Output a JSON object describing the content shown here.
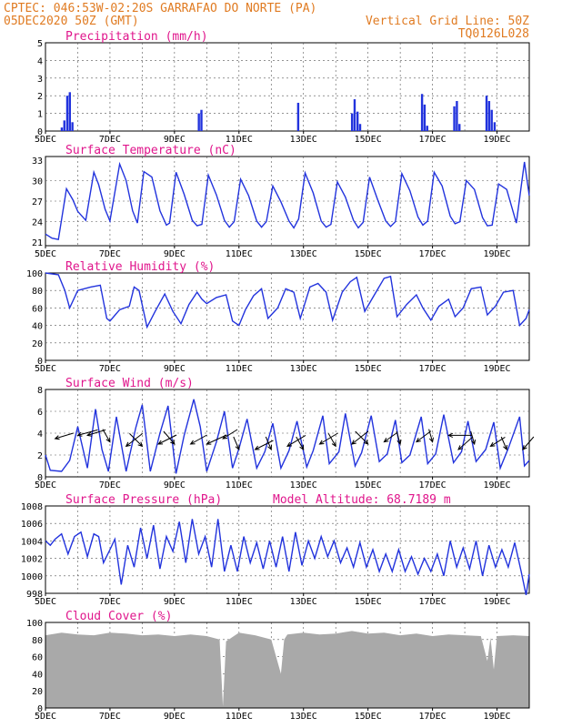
{
  "header": {
    "line1_left": "CPTEC:   046:53W-02:20S  GARRAFAO DO NORTE (PA)",
    "line2_left": "05DEC2020 50Z (GMT)",
    "line2_right": "Vertical Grid Line: 50Z",
    "line3_right": "TQ0126L028"
  },
  "colors": {
    "header": "#e07b22",
    "title": "#e0168c",
    "line": "#2233dd",
    "cloud": "#a9a9a9",
    "grid": "#555555"
  },
  "chart_data": [
    {
      "type": "bar",
      "title": "Precipitation (mm/h)",
      "x_tick_labels": [
        "5DEC",
        "7DEC",
        "9DEC",
        "11DEC",
        "13DEC",
        "15DEC",
        "17DEC",
        "19DEC"
      ],
      "day_range": [
        5,
        20
      ],
      "ylim": [
        0,
        5
      ],
      "y_ticks": [
        0,
        1,
        2,
        3,
        4,
        5
      ],
      "grid": true,
      "x": [
        5.5,
        5.58,
        5.67,
        5.75,
        5.83,
        9.75,
        9.83,
        12.83,
        14.5,
        14.58,
        14.67,
        14.75,
        16.67,
        16.75,
        16.83,
        17.67,
        17.75,
        17.83,
        18.67,
        18.75,
        18.83,
        18.92
      ],
      "values": [
        0.2,
        0.6,
        2.0,
        2.2,
        0.5,
        1.0,
        1.2,
        1.6,
        1.0,
        1.8,
        1.1,
        0.4,
        2.1,
        1.5,
        0.3,
        1.4,
        1.7,
        0.4,
        2.0,
        1.7,
        1.2,
        0.5
      ]
    },
    {
      "type": "line",
      "title": "Surface Temperature (nC)",
      "x_tick_labels": [
        "5DEC",
        "7DEC",
        "9DEC",
        "11DEC",
        "13DEC",
        "15DEC",
        "17DEC",
        "19DEC"
      ],
      "day_range": [
        5,
        20
      ],
      "ylim": [
        20.5,
        33.5
      ],
      "y_ticks": [
        21,
        24,
        27,
        30,
        33
      ],
      "grid": true,
      "x": [
        5.0,
        5.2,
        5.4,
        5.65,
        5.85,
        6.0,
        6.25,
        6.5,
        6.65,
        6.85,
        7.0,
        7.3,
        7.5,
        7.7,
        7.85,
        8.05,
        8.3,
        8.55,
        8.75,
        8.85,
        9.05,
        9.3,
        9.55,
        9.7,
        9.85,
        10.05,
        10.3,
        10.55,
        10.7,
        10.85,
        11.05,
        11.3,
        11.55,
        11.7,
        11.85,
        12.05,
        12.3,
        12.55,
        12.7,
        12.85,
        13.05,
        13.3,
        13.55,
        13.7,
        13.85,
        14.05,
        14.3,
        14.55,
        14.7,
        14.85,
        15.05,
        15.3,
        15.55,
        15.7,
        15.85,
        16.05,
        16.3,
        16.55,
        16.7,
        16.85,
        17.05,
        17.3,
        17.55,
        17.7,
        17.85,
        18.05,
        18.3,
        18.55,
        18.7,
        18.85,
        19.05,
        19.3,
        19.6,
        19.85,
        20.0
      ],
      "values": [
        22.2,
        21.6,
        21.4,
        28.8,
        27.2,
        25.5,
        24.2,
        31.2,
        29.4,
        25.8,
        24.1,
        32.4,
        30.0,
        25.6,
        23.8,
        31.3,
        30.5,
        25.6,
        23.5,
        23.8,
        31.2,
        28.0,
        24.2,
        23.4,
        23.6,
        30.8,
        27.9,
        24.2,
        23.2,
        24.0,
        30.2,
        27.8,
        24.1,
        23.2,
        24.0,
        29.2,
        26.9,
        24.1,
        23.1,
        24.4,
        31.1,
        28.2,
        24.1,
        23.2,
        23.6,
        29.8,
        27.6,
        24.2,
        23.1,
        23.9,
        30.5,
        27.2,
        24.1,
        23.3,
        24.0,
        31.0,
        28.5,
        24.7,
        23.5,
        24.1,
        31.2,
        29.2,
        24.8,
        23.7,
        24.0,
        30.0,
        28.7,
        24.6,
        23.4,
        23.5,
        29.5,
        28.7,
        23.8,
        32.7,
        27.8
      ]
    },
    {
      "type": "line",
      "title": "Relative Humidity (%)",
      "x_tick_labels": [
        "5DEC",
        "7DEC",
        "9DEC",
        "11DEC",
        "13DEC",
        "15DEC",
        "17DEC",
        "19DEC"
      ],
      "day_range": [
        5,
        20
      ],
      "ylim": [
        0,
        100
      ],
      "y_ticks": [
        0,
        20,
        40,
        60,
        80,
        100
      ],
      "grid": true,
      "x": [
        5.0,
        5.4,
        5.6,
        5.75,
        6.0,
        6.4,
        6.7,
        6.9,
        7.0,
        7.3,
        7.6,
        7.75,
        7.9,
        8.15,
        8.4,
        8.7,
        8.95,
        9.2,
        9.45,
        9.7,
        9.85,
        10.0,
        10.3,
        10.6,
        10.8,
        11.0,
        11.2,
        11.45,
        11.7,
        11.9,
        12.2,
        12.45,
        12.7,
        12.9,
        13.2,
        13.45,
        13.7,
        13.9,
        14.2,
        14.45,
        14.65,
        14.9,
        15.15,
        15.5,
        15.7,
        15.9,
        16.2,
        16.5,
        16.7,
        16.95,
        17.2,
        17.5,
        17.7,
        17.95,
        18.2,
        18.5,
        18.7,
        18.95,
        19.2,
        19.5,
        19.7,
        19.9,
        20.0
      ],
      "values": [
        100,
        98,
        80,
        60,
        80,
        84,
        86,
        48,
        45,
        58,
        62,
        84,
        80,
        38,
        56,
        76,
        56,
        42,
        64,
        78,
        70,
        65,
        72,
        75,
        45,
        40,
        58,
        74,
        82,
        48,
        60,
        82,
        78,
        48,
        84,
        88,
        78,
        46,
        78,
        90,
        95,
        56,
        72,
        94,
        96,
        50,
        64,
        75,
        60,
        46,
        62,
        70,
        50,
        60,
        82,
        84,
        52,
        62,
        78,
        80,
        40,
        48,
        58
      ]
    },
    {
      "type": "line",
      "title": "Surface Wind (m/s)",
      "x_tick_labels": [
        "5DEC",
        "7DEC",
        "9DEC",
        "11DEC",
        "13DEC",
        "15DEC",
        "17DEC",
        "19DEC"
      ],
      "day_range": [
        5,
        20
      ],
      "ylim": [
        0,
        8
      ],
      "y_ticks": [
        0,
        2,
        4,
        6,
        8
      ],
      "grid": true,
      "x": [
        5.0,
        5.15,
        5.5,
        5.75,
        6.0,
        6.3,
        6.55,
        6.75,
        6.95,
        7.2,
        7.5,
        7.8,
        8.0,
        8.25,
        8.55,
        8.8,
        9.05,
        9.3,
        9.6,
        9.8,
        10.0,
        10.3,
        10.55,
        10.8,
        11.0,
        11.25,
        11.55,
        11.8,
        12.05,
        12.3,
        12.55,
        12.8,
        13.1,
        13.3,
        13.6,
        13.8,
        14.1,
        14.3,
        14.6,
        14.8,
        15.1,
        15.35,
        15.6,
        15.85,
        16.05,
        16.3,
        16.65,
        16.85,
        17.1,
        17.35,
        17.65,
        17.9,
        18.1,
        18.35,
        18.65,
        18.9,
        19.1,
        19.35,
        19.7,
        19.85,
        20.0
      ],
      "values": [
        2.0,
        0.6,
        0.5,
        1.5,
        4.6,
        0.8,
        6.2,
        2.5,
        0.5,
        5.5,
        0.5,
        4.5,
        6.6,
        0.5,
        4.0,
        6.5,
        0.3,
        3.8,
        7.1,
        4.6,
        0.5,
        3.2,
        6.0,
        0.8,
        2.6,
        5.3,
        0.8,
        2.3,
        4.9,
        0.8,
        2.4,
        5.1,
        0.9,
        2.4,
        5.6,
        1.2,
        2.3,
        5.8,
        1.0,
        2.2,
        5.6,
        1.4,
        2.1,
        5.2,
        1.3,
        2.0,
        5.5,
        1.2,
        2.1,
        5.7,
        1.3,
        2.3,
        5.1,
        1.4,
        2.5,
        5.0,
        0.8,
        2.6,
        5.5,
        1.0,
        1.5
      ],
      "arrows": [
        {
          "day": 5.3,
          "speed": 3.5,
          "dx": 20,
          "dy": -6
        },
        {
          "day": 6.0,
          "speed": 3.8,
          "dx": 22,
          "dy": -6
        },
        {
          "day": 6.3,
          "speed": 3.8,
          "dx": 20,
          "dy": -6
        },
        {
          "day": 7.0,
          "speed": 3.2,
          "dx": -8,
          "dy": -14
        },
        {
          "day": 7.5,
          "speed": 2.8,
          "dx": 18,
          "dy": -14
        },
        {
          "day": 8.0,
          "speed": 2.8,
          "dx": -14,
          "dy": -14
        },
        {
          "day": 8.5,
          "speed": 3.0,
          "dx": 20,
          "dy": -10
        },
        {
          "day": 9.0,
          "speed": 3.0,
          "dx": -12,
          "dy": -14
        },
        {
          "day": 9.5,
          "speed": 3.0,
          "dx": 18,
          "dy": -10
        },
        {
          "day": 10.0,
          "speed": 3.0,
          "dx": 22,
          "dy": -10
        },
        {
          "day": 10.5,
          "speed": 3.5,
          "dx": 16,
          "dy": -10
        },
        {
          "day": 11.0,
          "speed": 2.5,
          "dx": -6,
          "dy": -14
        },
        {
          "day": 11.5,
          "speed": 2.5,
          "dx": 20,
          "dy": -10
        },
        {
          "day": 12.0,
          "speed": 2.5,
          "dx": -6,
          "dy": -14
        },
        {
          "day": 12.5,
          "speed": 2.8,
          "dx": 20,
          "dy": -12
        },
        {
          "day": 13.0,
          "speed": 2.5,
          "dx": -8,
          "dy": -14
        },
        {
          "day": 13.5,
          "speed": 3.0,
          "dx": 20,
          "dy": -12
        },
        {
          "day": 14.0,
          "speed": 2.8,
          "dx": -8,
          "dy": -14
        },
        {
          "day": 14.5,
          "speed": 3.0,
          "dx": 18,
          "dy": -14
        },
        {
          "day": 15.0,
          "speed": 3.0,
          "dx": -14,
          "dy": -14
        },
        {
          "day": 15.5,
          "speed": 3.2,
          "dx": 14,
          "dy": -10
        },
        {
          "day": 16.0,
          "speed": 3.0,
          "dx": -4,
          "dy": -14
        },
        {
          "day": 16.5,
          "speed": 3.2,
          "dx": 16,
          "dy": -12
        },
        {
          "day": 17.0,
          "speed": 3.2,
          "dx": -4,
          "dy": -14
        },
        {
          "day": 17.5,
          "speed": 3.8,
          "dx": 26,
          "dy": 0
        },
        {
          "day": 17.8,
          "speed": 2.5,
          "dx": 16,
          "dy": -14
        },
        {
          "day": 18.3,
          "speed": 3.0,
          "dx": -4,
          "dy": -14
        },
        {
          "day": 18.8,
          "speed": 2.8,
          "dx": 16,
          "dy": -10
        },
        {
          "day": 19.3,
          "speed": 2.5,
          "dx": -6,
          "dy": -14
        },
        {
          "day": 19.8,
          "speed": 2.5,
          "dx": 12,
          "dy": -14
        }
      ]
    },
    {
      "type": "line",
      "title": "Surface Pressure (hPa)",
      "annotation": "Model Altitude: 68.7189 m",
      "x_tick_labels": [
        "5DEC",
        "7DEC",
        "9DEC",
        "11DEC",
        "13DEC",
        "15DEC",
        "17DEC",
        "19DEC"
      ],
      "day_range": [
        5,
        20
      ],
      "ylim": [
        998,
        1008
      ],
      "y_ticks": [
        998,
        1000,
        1002,
        1004,
        1006,
        1008
      ],
      "grid": true,
      "x": [
        5.0,
        5.15,
        5.3,
        5.5,
        5.7,
        5.9,
        6.1,
        6.3,
        6.5,
        6.65,
        6.8,
        7.0,
        7.15,
        7.35,
        7.55,
        7.75,
        7.95,
        8.15,
        8.35,
        8.55,
        8.75,
        8.95,
        9.15,
        9.35,
        9.55,
        9.75,
        9.95,
        10.15,
        10.35,
        10.55,
        10.75,
        10.95,
        11.15,
        11.35,
        11.55,
        11.75,
        11.95,
        12.15,
        12.35,
        12.55,
        12.75,
        12.95,
        13.15,
        13.35,
        13.55,
        13.75,
        13.95,
        14.15,
        14.35,
        14.55,
        14.75,
        14.95,
        15.15,
        15.35,
        15.55,
        15.75,
        15.95,
        16.15,
        16.35,
        16.55,
        16.75,
        16.95,
        17.15,
        17.35,
        17.55,
        17.75,
        17.95,
        18.15,
        18.35,
        18.55,
        18.75,
        18.95,
        19.15,
        19.35,
        19.55,
        19.75,
        19.9,
        20.0
      ],
      "values": [
        1004.0,
        1003.5,
        1004.2,
        1004.8,
        1002.5,
        1004.5,
        1005.0,
        1002.2,
        1004.8,
        1004.5,
        1001.5,
        1003.0,
        1004.2,
        999.0,
        1003.5,
        1001.0,
        1005.5,
        1002.0,
        1005.8,
        1000.8,
        1004.5,
        1002.8,
        1006.2,
        1001.5,
        1006.5,
        1002.5,
        1004.5,
        1001.0,
        1006.5,
        1000.5,
        1003.5,
        1000.5,
        1004.5,
        1001.5,
        1003.8,
        1000.8,
        1004.0,
        1001.0,
        1004.5,
        1000.5,
        1005.0,
        1001.2,
        1004.0,
        1002.0,
        1004.5,
        1002.2,
        1004.0,
        1001.5,
        1003.2,
        1001.0,
        1003.8,
        1001.0,
        1003.0,
        1000.5,
        1002.5,
        1000.5,
        1003.0,
        1000.5,
        1002.2,
        1000.2,
        1002.0,
        1000.5,
        1002.5,
        1000.0,
        1004.0,
        1001.0,
        1003.2,
        1000.8,
        1004.0,
        1000.0,
        1003.5,
        1001.0,
        1003.0,
        1001.0,
        1003.8,
        1000.5,
        997.8,
        1000.2
      ]
    },
    {
      "type": "area",
      "title": "Cloud Cover (%)",
      "x_tick_labels": [
        "5DEC",
        "7DEC",
        "9DEC",
        "11DEC",
        "13DEC",
        "15DEC",
        "17DEC",
        "19DEC"
      ],
      "day_range": [
        5,
        20
      ],
      "ylim": [
        0,
        100
      ],
      "y_ticks": [
        0,
        20,
        40,
        60,
        80,
        100
      ],
      "grid": true,
      "x": [
        5.0,
        5.5,
        6.0,
        6.5,
        7.0,
        7.5,
        8.0,
        8.5,
        9.0,
        9.5,
        10.0,
        10.4,
        10.5,
        10.6,
        11.0,
        11.5,
        12.0,
        12.3,
        12.4,
        12.5,
        13.0,
        13.5,
        14.0,
        14.5,
        15.0,
        15.5,
        16.0,
        16.5,
        17.0,
        17.5,
        18.0,
        18.5,
        18.7,
        18.8,
        18.9,
        19.0,
        19.5,
        20.0
      ],
      "values": [
        85,
        88,
        86,
        85,
        88,
        87,
        85,
        86,
        84,
        86,
        84,
        80,
        2,
        78,
        88,
        85,
        80,
        40,
        80,
        86,
        88,
        86,
        87,
        90,
        87,
        88,
        85,
        87,
        84,
        86,
        85,
        84,
        55,
        82,
        45,
        84,
        85,
        84
      ]
    }
  ]
}
